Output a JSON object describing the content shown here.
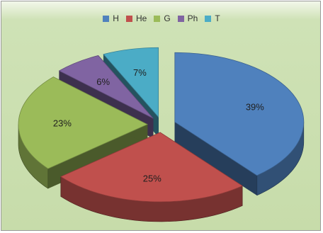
{
  "chart_data": {
    "type": "pie",
    "style": "exploded-3d",
    "categories": [
      "H",
      "He",
      "G",
      "Ph",
      "T"
    ],
    "values": [
      39,
      25,
      23,
      6,
      7
    ],
    "labels": [
      "39%",
      "25%",
      "23%",
      "6%",
      "7%"
    ],
    "colors": [
      "#4f81bd",
      "#c0504d",
      "#9bbb59",
      "#8064a2",
      "#4bacc6"
    ],
    "legend_position": "top"
  }
}
